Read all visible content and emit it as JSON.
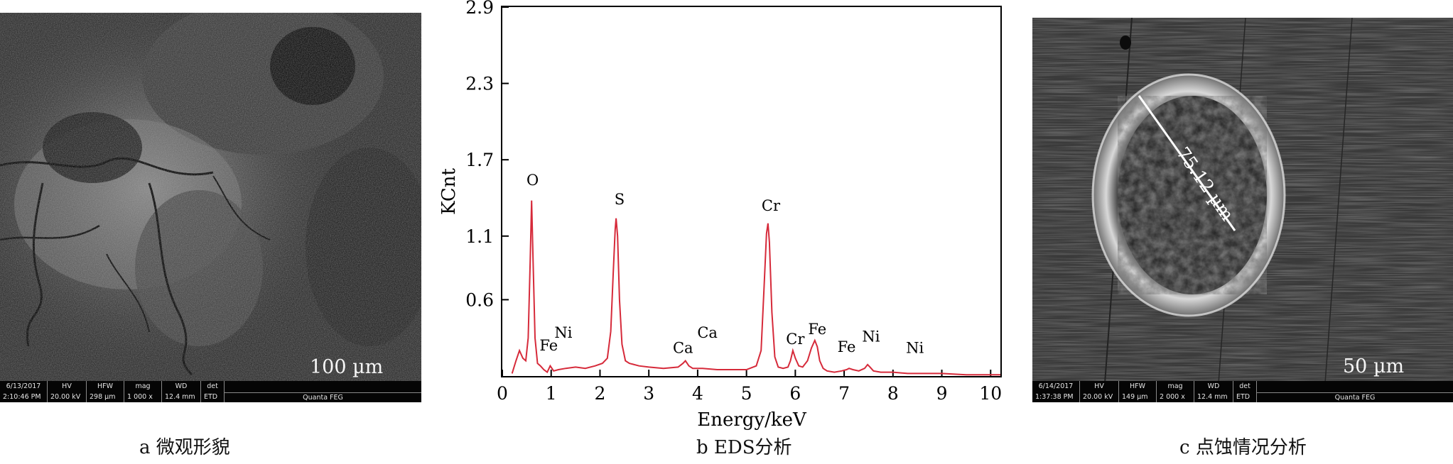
{
  "panels": [
    {
      "id": "a",
      "caption": "a  微观形貌",
      "scale_bar": "100 µm",
      "infobar": {
        "cells": [
          {
            "top": "6/13/2017",
            "bot": "2:10:46 PM"
          },
          {
            "top": "HV",
            "bot": "20.00 kV"
          },
          {
            "top": "HFW",
            "bot": "298 µm"
          },
          {
            "top": "mag",
            "bot": "1 000 x"
          },
          {
            "top": "WD",
            "bot": "12.4 mm"
          },
          {
            "top": "det",
            "bot": "ETD"
          }
        ],
        "instrument": "Quanta FEG"
      }
    },
    {
      "id": "b",
      "caption": "b  EDS分析"
    },
    {
      "id": "c",
      "caption": "c  点蚀情况分析",
      "scale_bar": "50 µm",
      "measurement": "75.12 µm",
      "infobar": {
        "cells": [
          {
            "top": "6/14/2017",
            "bot": "1:37:38 PM"
          },
          {
            "top": "HV",
            "bot": "20.00 kV"
          },
          {
            "top": "HFW",
            "bot": "149 µm"
          },
          {
            "top": "mag",
            "bot": "2 000 x"
          },
          {
            "top": "WD",
            "bot": "12.4 mm"
          },
          {
            "top": "det",
            "bot": "ETD"
          }
        ],
        "instrument": "Quanta FEG"
      }
    }
  ],
  "chart_data": {
    "type": "line",
    "xlabel": "Energy/keV",
    "ylabel": "KCnt",
    "xlim": [
      0,
      10.2
    ],
    "ylim": [
      0,
      2.9
    ],
    "x_ticks": [
      "0",
      "1",
      "2",
      "3",
      "4",
      "5",
      "6",
      "7",
      "8",
      "9",
      "10"
    ],
    "y_ticks": [
      "0.6",
      "1.1",
      "1.7",
      "2.3",
      "2.9"
    ],
    "y_tick_values": [
      0.6,
      1.1,
      1.7,
      2.3,
      2.9
    ],
    "line_color": "#d62a3a",
    "series": [
      {
        "x": [
          0.2,
          0.28,
          0.35,
          0.42,
          0.48,
          0.53,
          0.57,
          0.6,
          0.63,
          0.67,
          0.72,
          0.78,
          0.85,
          0.92,
          0.98,
          1.05,
          1.15,
          1.3,
          1.5,
          1.7,
          1.9,
          2.05,
          2.15,
          2.22,
          2.27,
          2.31,
          2.33,
          2.36,
          2.4,
          2.45,
          2.52,
          2.6,
          2.8,
          3.0,
          3.3,
          3.6,
          3.7,
          3.75,
          3.82,
          3.9,
          4.1,
          4.4,
          4.7,
          5.0,
          5.2,
          5.3,
          5.36,
          5.41,
          5.44,
          5.47,
          5.52,
          5.58,
          5.65,
          5.75,
          5.85,
          5.9,
          5.95,
          6.0,
          6.07,
          6.15,
          6.25,
          6.33,
          6.4,
          6.45,
          6.5,
          6.57,
          6.65,
          6.8,
          6.95,
          7.05,
          7.1,
          7.18,
          7.3,
          7.42,
          7.48,
          7.53,
          7.6,
          7.75,
          8.0,
          8.3,
          8.6,
          9.0,
          9.5,
          10.0,
          10.2
        ],
        "y": [
          0.02,
          0.12,
          0.2,
          0.14,
          0.12,
          0.3,
          0.9,
          1.38,
          0.9,
          0.3,
          0.1,
          0.08,
          0.05,
          0.03,
          0.08,
          0.04,
          0.05,
          0.06,
          0.07,
          0.06,
          0.08,
          0.1,
          0.14,
          0.35,
          0.8,
          1.15,
          1.24,
          1.1,
          0.6,
          0.25,
          0.12,
          0.1,
          0.08,
          0.07,
          0.06,
          0.07,
          0.1,
          0.12,
          0.08,
          0.06,
          0.06,
          0.05,
          0.05,
          0.05,
          0.08,
          0.2,
          0.7,
          1.12,
          1.2,
          1.05,
          0.5,
          0.15,
          0.07,
          0.06,
          0.07,
          0.12,
          0.2,
          0.14,
          0.08,
          0.07,
          0.12,
          0.22,
          0.28,
          0.23,
          0.12,
          0.06,
          0.04,
          0.03,
          0.04,
          0.05,
          0.06,
          0.05,
          0.04,
          0.06,
          0.09,
          0.07,
          0.04,
          0.03,
          0.03,
          0.02,
          0.02,
          0.02,
          0.01,
          0.01,
          0.01
        ]
      }
    ],
    "annotations": [
      {
        "text": "O",
        "x": 0.62,
        "y": 1.5
      },
      {
        "text": "Fe",
        "x": 0.95,
        "y": 0.2
      },
      {
        "text": "Ni",
        "x": 1.25,
        "y": 0.3
      },
      {
        "text": "S",
        "x": 2.4,
        "y": 1.35
      },
      {
        "text": "Ca",
        "x": 3.7,
        "y": 0.18
      },
      {
        "text": "Ca",
        "x": 4.2,
        "y": 0.3
      },
      {
        "text": "Cr",
        "x": 5.5,
        "y": 1.3
      },
      {
        "text": "Cr",
        "x": 6.0,
        "y": 0.25
      },
      {
        "text": "Fe",
        "x": 6.45,
        "y": 0.33
      },
      {
        "text": "Fe",
        "x": 7.05,
        "y": 0.19
      },
      {
        "text": "Ni",
        "x": 7.55,
        "y": 0.27
      },
      {
        "text": "Ni",
        "x": 8.45,
        "y": 0.18
      }
    ]
  }
}
